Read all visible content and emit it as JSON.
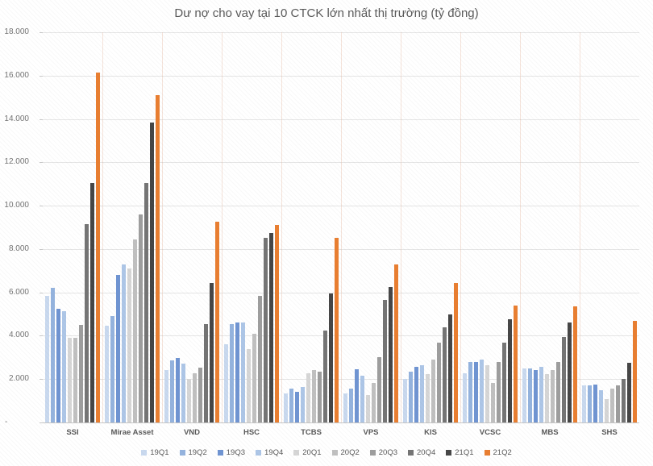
{
  "chart_data": {
    "type": "bar",
    "title": "Dư nợ cho vay tại 10 CTCK lớn nhất thị trường (tỷ đồng)",
    "categories": [
      "SSI",
      "Mirae Asset",
      "VND",
      "HSC",
      "TCBS",
      "VPS",
      "KIS",
      "VCSC",
      "MBS",
      "SHS"
    ],
    "series": [
      {
        "name": "19Q1",
        "color": "#c9d9ef",
        "values": [
          5850,
          4450,
          2400,
          3620,
          1350,
          1330,
          2000,
          2280,
          2500,
          1700
        ]
      },
      {
        "name": "19Q2",
        "color": "#94b3de",
        "values": [
          6200,
          4900,
          2870,
          4550,
          1550,
          1550,
          2350,
          2800,
          2500,
          1700
        ]
      },
      {
        "name": "19Q3",
        "color": "#6f94d2",
        "values": [
          5250,
          6800,
          2970,
          4600,
          1400,
          2450,
          2550,
          2800,
          2400,
          1760
        ]
      },
      {
        "name": "19Q4",
        "color": "#adc6e7",
        "values": [
          5150,
          7300,
          2720,
          4600,
          1650,
          2170,
          2630,
          2900,
          2550,
          1480
        ]
      },
      {
        "name": "20Q1",
        "color": "#d6d6d6",
        "values": [
          3900,
          7100,
          2000,
          3370,
          2280,
          1270,
          2230,
          2650,
          2220,
          1080
        ]
      },
      {
        "name": "20Q2",
        "color": "#c0c0c0",
        "values": [
          3900,
          8450,
          2280,
          4090,
          2420,
          1820,
          2900,
          1820,
          2420,
          1550
        ]
      },
      {
        "name": "20Q3",
        "color": "#9d9d9d",
        "values": [
          4500,
          9600,
          2530,
          5850,
          2350,
          3000,
          3680,
          2800,
          2800,
          1700
        ]
      },
      {
        "name": "20Q4",
        "color": "#747474",
        "values": [
          9150,
          11050,
          4550,
          8500,
          4250,
          5670,
          4400,
          3700,
          3950,
          2000
        ]
      },
      {
        "name": "21Q1",
        "color": "#454545",
        "values": [
          11050,
          13850,
          6450,
          8750,
          5950,
          6250,
          5000,
          4750,
          4600,
          2750
        ]
      },
      {
        "name": "21Q2",
        "color": "#e97e30",
        "values": [
          16150,
          15100,
          9250,
          9100,
          8500,
          7300,
          6450,
          5400,
          5350,
          4700
        ]
      }
    ],
    "ylim": [
      0,
      18000
    ],
    "ytick_step": 2000,
    "ytick_labels": [
      "-",
      "2.000",
      "4.000",
      "6.000",
      "8.000",
      "10.000",
      "12.000",
      "14.000",
      "16.000",
      "18.000"
    ],
    "grid": true,
    "legend_position": "bottom"
  }
}
